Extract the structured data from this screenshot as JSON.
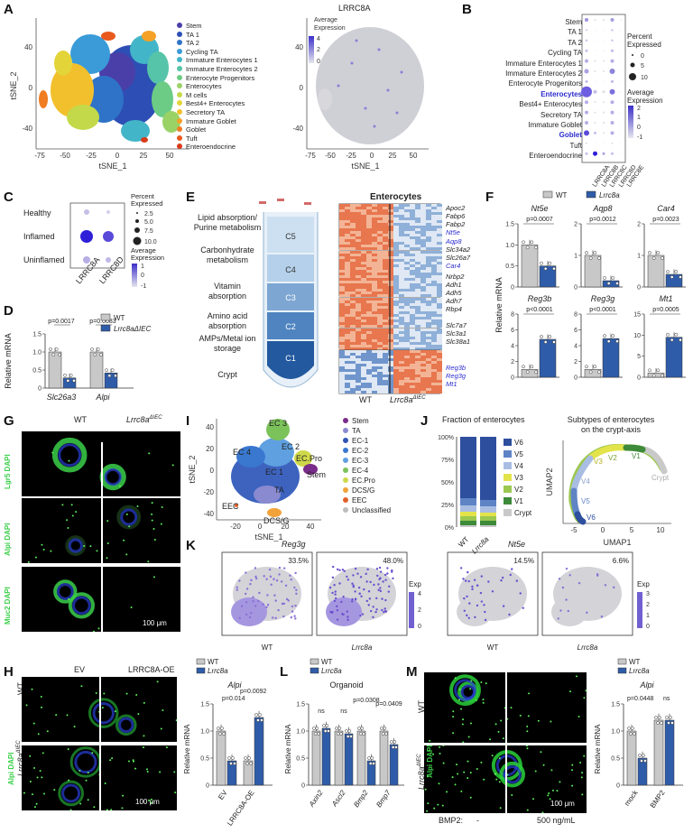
{
  "panels": {
    "A": "A",
    "B": "B",
    "C": "C",
    "D": "D",
    "E": "E",
    "F": "F",
    "G": "G",
    "H": "H",
    "I": "I",
    "J": "J",
    "K": "K",
    "L": "L",
    "M": "M"
  },
  "A": {
    "xlabel": "tSNE_1",
    "ylabel": "tSNE_2",
    "xticks": [
      "-75",
      "-50",
      "-25",
      "0",
      "25",
      "50"
    ],
    "yticks": [
      "40",
      "0",
      "-40"
    ],
    "legend": [
      {
        "name": "Stem",
        "color": "#4a3fa8"
      },
      {
        "name": "TA 1",
        "color": "#2d4fb5"
      },
      {
        "name": "TA 2",
        "color": "#2f73c8"
      },
      {
        "name": "Cycling TA",
        "color": "#3a9bd8"
      },
      {
        "name": "Immature Enterocytes 1",
        "color": "#43b5c8"
      },
      {
        "name": "Immature Enterocytes 2",
        "color": "#56c4a8"
      },
      {
        "name": "Enterocyte Progenitors",
        "color": "#6ccc85"
      },
      {
        "name": "Enterocytes",
        "color": "#9ad266"
      },
      {
        "name": "M cells",
        "color": "#c4d94a"
      },
      {
        "name": "Best4+ Enterocytes",
        "color": "#e3d43a"
      },
      {
        "name": "Secretory TA",
        "color": "#f2c02c"
      },
      {
        "name": "Immature Goblet",
        "color": "#f4a126"
      },
      {
        "name": "Goblet",
        "color": "#f07d22"
      },
      {
        "name": "Tuft",
        "color": "#e85a1e"
      },
      {
        "name": "Enteroendocrine",
        "color": "#d93a1a"
      }
    ],
    "right_title": "LRRC8A",
    "colorbar_title": "Average\nExpression",
    "colorbar_ticks": [
      "4",
      "2",
      "0"
    ],
    "right_xlabel": "tSNE_1",
    "right_xticks": [
      "-75",
      "-50",
      "-25",
      "0",
      "25",
      "50"
    ],
    "right_yticks": [
      "40",
      "0",
      "-40"
    ]
  },
  "B": {
    "rows": [
      "Stem",
      "TA 1",
      "TA 2",
      "Cycling TA",
      "Immature Enterocytes 1",
      "Immature Enterocytes 2",
      "Enterocyte Progenitors",
      "Enterocytes",
      "Best4+ Enterocytes",
      "Secretory TA",
      "Immature Goblet",
      "Goblet",
      "Tuft",
      "Enteroendocrine"
    ],
    "highlight": [
      "Enterocytes",
      "Goblet"
    ],
    "cols": [
      "LRRC8A",
      "LRRC8B",
      "LRRC8C",
      "LRRC8D",
      "LRRC8E"
    ],
    "size_title": "Percent\nExpressed",
    "size_legend": [
      "0",
      "5",
      "10"
    ],
    "color_title": "Average\nExpression",
    "color_ticks": [
      "2",
      "1",
      "0",
      "-1"
    ]
  },
  "C": {
    "rows": [
      "Healthy",
      "Inflamed",
      "Uninflamed"
    ],
    "cols": [
      "LRRC8A",
      "LRRC8D"
    ],
    "size_title": "Percent\nExpressed",
    "size_legend": [
      "2.5",
      "5.0",
      "7.5",
      "10.0"
    ],
    "color_title": "Average\nExpression",
    "color_ticks": [
      "1",
      "0",
      "-1"
    ]
  },
  "D": {
    "ylabel": "Relative mRNA",
    "yticks": [
      "0",
      "0.5",
      "1.0",
      "1.5"
    ],
    "legend": [
      "WT",
      "Lrrc8aΔIEC"
    ],
    "legend_sup": "ΔIEC",
    "groups": [
      "Slc26a3",
      "Alpi"
    ],
    "pvals": [
      "p=0.0017",
      "p=0.0083"
    ],
    "bars": [
      1.0,
      0.28,
      1.0,
      0.42
    ]
  },
  "E": {
    "title": "Enterocytes",
    "zones": [
      "Lipid absorption/\nPurine metabolism",
      "Carbonhydrate\nmetabolism",
      "Vitamin\nabsorption",
      "Amino acid\nabsorption",
      "AMPs/Metal ion\nstorage",
      "Crypt"
    ],
    "zone_codes": [
      "C5",
      "C4",
      "C3",
      "C2",
      "C1"
    ],
    "genes_black": [
      "Apoc2",
      "Fabp6",
      "Fabp2",
      "Slc34a2",
      "Slc26a7",
      "Nrbp2",
      "Adh1",
      "Adh5",
      "Adh7",
      "Rbp4",
      "Slc7a7",
      "Slc3a1",
      "Slc38a1"
    ],
    "genes_blue": [
      "Nt5e",
      "Aqp8",
      "Car4",
      "Reg3b",
      "Reg3g",
      "Mt1"
    ],
    "xlabels": [
      "WT",
      "Lrrc8a"
    ],
    "sup": "ΔIEC"
  },
  "F": {
    "legend": [
      "WT",
      "Lrrc8a"
    ],
    "sup": "ΔIEC",
    "ylabel": "Relative mRNA",
    "plots": [
      {
        "gene": "Nt5e",
        "p": "p=0.0007",
        "yticks": [
          "0",
          "0.5",
          "1.0",
          "1.5"
        ],
        "vals": [
          1.0,
          0.5
        ]
      },
      {
        "gene": "Aqp8",
        "p": "p=0.0012",
        "yticks": [
          "0",
          "1",
          "2"
        ],
        "vals": [
          1.0,
          0.2
        ]
      },
      {
        "gene": "Car4",
        "p": "p=0.0023",
        "yticks": [
          "0",
          "1",
          "2"
        ],
        "vals": [
          1.0,
          0.4
        ]
      },
      {
        "gene": "Reg3b",
        "p": "p<0.0001",
        "yticks": [
          "0",
          "2",
          "4",
          "6",
          "8"
        ],
        "vals": [
          1.0,
          4.8
        ]
      },
      {
        "gene": "Reg3g",
        "p": "p<0.0001",
        "yticks": [
          "0",
          "2",
          "4",
          "6",
          "8"
        ],
        "vals": [
          1.0,
          4.9
        ]
      },
      {
        "gene": "Mt1",
        "p": "p=0.0005",
        "yticks": [
          "0",
          "5",
          "10",
          "15"
        ],
        "vals": [
          1.0,
          9.5
        ]
      }
    ]
  },
  "G": {
    "cols": [
      "WT",
      "Lrrc8a"
    ],
    "sup": "ΔIEC",
    "rows": [
      "Lgr5 DAPI",
      "Alpi DAPI",
      "Muc2 DAPI"
    ],
    "scale": "100 μm"
  },
  "H": {
    "cols": [
      "EV",
      "LRRC8A-OE"
    ],
    "rows": [
      "WT",
      "Lrrc8a"
    ],
    "sup": "ΔIEC",
    "side": "Alpi DAPI",
    "scale": "100 μm",
    "legend": [
      "WT",
      "Lrrc8a"
    ],
    "title": "Alpi",
    "ylabel": "Relative mRNA",
    "yticks": [
      "0",
      "0.5",
      "1.0",
      "1.5"
    ],
    "groups": [
      "EV",
      "LRRC8A-OE"
    ],
    "pvals": [
      "p=0.014",
      "p=0.0092"
    ],
    "bars": [
      1.0,
      0.45,
      0.45,
      1.25
    ]
  },
  "I": {
    "xlabel": "tSNE_1",
    "ylabel": "tSNE_2",
    "xticks": [
      "-20",
      "0",
      "20",
      "40"
    ],
    "yticks": [
      "40",
      "20",
      "0",
      "-20",
      "-40"
    ],
    "clusters": [
      "EC 3",
      "EC 2",
      "EC 4",
      "EC.Pro",
      "Stem",
      "EC 1",
      "TA",
      "EEC",
      "DCS/G"
    ],
    "legend": [
      {
        "name": "Stem",
        "color": "#7a2c8a"
      },
      {
        "name": "TA",
        "color": "#8a8ad0"
      },
      {
        "name": "EC-1",
        "color": "#2f55b8"
      },
      {
        "name": "EC-2",
        "color": "#3a78d0"
      },
      {
        "name": "EC-3",
        "color": "#5fa0e0"
      },
      {
        "name": "EC-4",
        "color": "#7cc25a"
      },
      {
        "name": "EC.Pro",
        "color": "#cfd84a"
      },
      {
        "name": "DCS/G",
        "color": "#f2a23a"
      },
      {
        "name": "EEC",
        "color": "#e0602a"
      },
      {
        "name": "Unclassified",
        "color": "#bdbdbd"
      }
    ]
  },
  "J": {
    "title_left": "Fraction of enterocytes",
    "title_right": "Subtypes of enterocytes\non the crypt-axis",
    "yticks": [
      "100%",
      "75%",
      "50%",
      "25%",
      "0%"
    ],
    "xlabels": [
      "WT",
      "Lrrc8a"
    ],
    "sup": "ΔIEC",
    "legend": [
      {
        "name": "V6",
        "color": "#2e4f9e"
      },
      {
        "name": "V5",
        "color": "#5f84c6"
      },
      {
        "name": "V4",
        "color": "#a9bde3"
      },
      {
        "name": "V3",
        "color": "#e3e34a"
      },
      {
        "name": "V2",
        "color": "#9cc850"
      },
      {
        "name": "V1",
        "color": "#3d8a3a"
      },
      {
        "name": "Crypt",
        "color": "#c9c9c9"
      }
    ],
    "fractions_wt": [
      0.68,
      0.08,
      0.07,
      0.05,
      0.05,
      0.05,
      0.02
    ],
    "fractions_ko": [
      0.7,
      0.07,
      0.07,
      0.04,
      0.05,
      0.05,
      0.02
    ],
    "umap_xlabel": "UMAP1",
    "umap_ylabel": "UMAP2",
    "umap_xticks": [
      "-5",
      "0",
      "5",
      "10"
    ],
    "umap_labels": [
      "V1",
      "V2",
      "V3",
      "V4",
      "V5",
      "V6",
      "Crypt"
    ]
  },
  "K": {
    "genes": [
      "Reg3g",
      "Nt5e"
    ],
    "pct": [
      "33.5%",
      "48.0%",
      "14.5%",
      "6.6%"
    ],
    "xlabels": [
      "WT",
      "Lrrc8a",
      "WT",
      "Lrrc8a"
    ],
    "sup": "ΔIEC",
    "cb1_title": "Exp",
    "cb1_ticks": [
      "4",
      "2",
      "0"
    ],
    "cb2_title": "Exp",
    "cb2_ticks": [
      "3",
      "2",
      "1",
      "0"
    ]
  },
  "L": {
    "legend": [
      "WT",
      "Lrrc8a"
    ],
    "sup": "ΔIEC",
    "title": "Organoid",
    "ylabel": "Relative mRNA",
    "yticks": [
      "0",
      "0.5",
      "1.0",
      "1.5"
    ],
    "groups": [
      "Axin2",
      "Ascl2",
      "Bmp2",
      "Bmp7"
    ],
    "pvals": [
      "ns",
      "ns",
      "p=0.0308",
      "p=0.0409"
    ],
    "bars": [
      1.0,
      1.05,
      1.0,
      0.95,
      1.0,
      0.45,
      1.0,
      0.75
    ]
  },
  "M": {
    "rows": [
      "WT",
      "Lrrc8a"
    ],
    "sup": "ΔIEC",
    "side": "Alpi DAPI",
    "scale": "100 μm",
    "bottom": [
      "BMP2:",
      "-",
      "500 ng/mL"
    ],
    "legend": [
      "WT",
      "Lrrc8a"
    ],
    "title": "Alpi",
    "ylabel": "Relative mRNA",
    "yticks": [
      "0",
      "0.5",
      "1.0",
      "1.5"
    ],
    "groups": [
      "mock",
      "BMP2"
    ],
    "pvals": [
      "p=0.0448",
      "ns"
    ],
    "bars": [
      1.0,
      0.5,
      1.2,
      1.2
    ]
  }
}
